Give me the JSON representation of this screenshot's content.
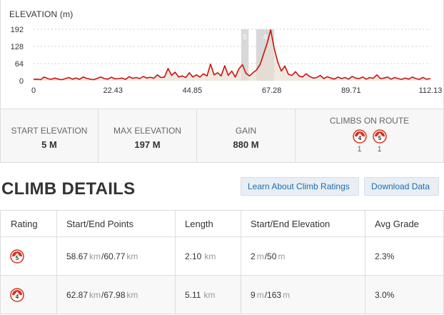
{
  "chart_data": {
    "type": "area",
    "title": "ELEVATION (m)",
    "xlabel": "",
    "ylabel": "",
    "xlim": [
      0,
      112.13
    ],
    "ylim": [
      0,
      192
    ],
    "yticks": [
      "192",
      "128",
      "64",
      "0"
    ],
    "ytick_values": [
      192,
      128,
      64,
      0
    ],
    "xticks": [
      "0",
      "22.43",
      "44.85",
      "67.28",
      "89.71",
      "112.13"
    ],
    "xtick_values": [
      0,
      22.43,
      44.85,
      67.28,
      89.71,
      112.13
    ],
    "grid": true,
    "line_color": "#cc1111",
    "fill_color": "#e8e0d2",
    "highlight_color": "#d8d8d8",
    "climb_regions": [
      {
        "label": "5",
        "start": 58.67,
        "end": 60.77
      },
      {
        "label": "4",
        "start": 62.87,
        "end": 67.98
      }
    ],
    "x": [
      0,
      1,
      2,
      3,
      4,
      5,
      6,
      7,
      8,
      9,
      10,
      11,
      12,
      13,
      14,
      15,
      16,
      17,
      18,
      19,
      20,
      21,
      22,
      23,
      24,
      25,
      26,
      27,
      28,
      29,
      30,
      31,
      32,
      33,
      34,
      35,
      36,
      37,
      38,
      39,
      40,
      41,
      42,
      43,
      44,
      45,
      46,
      47,
      48,
      49,
      50,
      51,
      52,
      53,
      54,
      55,
      56,
      57,
      58,
      59,
      60,
      61,
      62,
      63,
      64,
      65,
      66,
      67,
      68,
      69,
      70,
      71,
      72,
      73,
      74,
      75,
      76,
      77,
      78,
      79,
      80,
      81,
      82,
      83,
      84,
      85,
      86,
      87,
      88,
      89,
      90,
      91,
      92,
      93,
      94,
      95,
      96,
      97,
      98,
      99,
      100,
      101,
      102,
      103,
      104,
      105,
      106,
      107,
      108,
      109,
      110,
      111,
      112.13
    ],
    "values": [
      5,
      6,
      4,
      14,
      8,
      5,
      10,
      6,
      4,
      8,
      12,
      6,
      10,
      5,
      14,
      9,
      6,
      4,
      9,
      14,
      8,
      6,
      13,
      7,
      8,
      10,
      5,
      15,
      9,
      12,
      8,
      16,
      10,
      13,
      9,
      22,
      12,
      14,
      46,
      20,
      32,
      14,
      18,
      12,
      30,
      14,
      22,
      14,
      26,
      18,
      62,
      22,
      30,
      18,
      56,
      20,
      36,
      14,
      44,
      60,
      28,
      18,
      30,
      40,
      60,
      100,
      140,
      190,
      120,
      70,
      36,
      55,
      24,
      20,
      34,
      18,
      14,
      26,
      16,
      10,
      12,
      20,
      8,
      15,
      10,
      6,
      14,
      8,
      12,
      6,
      16,
      10,
      8,
      14,
      6,
      12,
      9,
      22,
      8,
      10,
      14,
      6,
      12,
      8,
      5,
      10,
      6,
      14,
      8,
      5,
      12,
      6,
      8
    ]
  },
  "stats": {
    "start_label": "START ELEVATION",
    "start_value": "5 M",
    "max_label": "MAX ELEVATION",
    "max_value": "197 M",
    "gain_label": "GAIN",
    "gain_value": "880 M",
    "climbs_label": "CLIMBS ON ROUTE",
    "climbs": [
      {
        "category": "4",
        "count": "1"
      },
      {
        "category": "5",
        "count": "1"
      }
    ]
  },
  "details": {
    "title": "CLIMB DETAILS",
    "learn_button": "Learn About Climb Ratings",
    "download_button": "Download Data"
  },
  "table": {
    "headers": [
      "Rating",
      "Start/End Points",
      "Length",
      "Start/End Elevation",
      "Avg Grade"
    ],
    "rows": [
      {
        "rating": "5",
        "start": "58.67",
        "end": "60.77",
        "dist_unit": "km",
        "length": "2.10",
        "length_unit": "km",
        "elev_start": "2",
        "elev_end": "50",
        "elev_unit": "m",
        "grade": "2.3%"
      },
      {
        "rating": "4",
        "start": "62.87",
        "end": "67.98",
        "dist_unit": "km",
        "length": "5.11",
        "length_unit": "km",
        "elev_start": "9",
        "elev_end": "163",
        "elev_unit": "m",
        "grade": "3.0%"
      }
    ]
  },
  "colors": {
    "badge_red": "#d9311e",
    "link_blue": "#1a6fb5"
  }
}
